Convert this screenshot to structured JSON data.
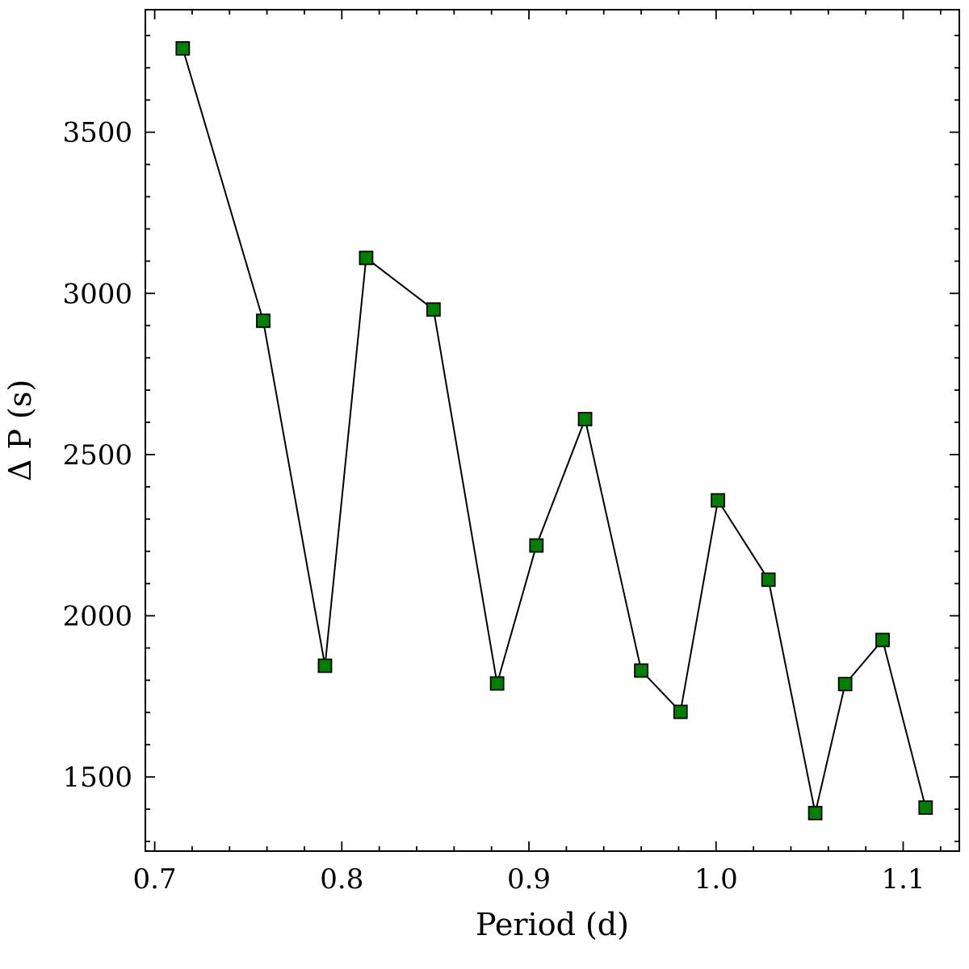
{
  "chart_data": {
    "type": "line",
    "title": "",
    "xlabel": "Period (d)",
    "ylabel": "Δ P (s)",
    "xlim": [
      0.695,
      1.13
    ],
    "ylim": [
      1270,
      3880
    ],
    "xticks": [
      0.7,
      0.8,
      0.9,
      1.0,
      1.1
    ],
    "xtick_labels": [
      "0.7",
      "0.8",
      "0.9",
      "1.0",
      "1.1"
    ],
    "xminor_step": 0.02,
    "yticks": [
      1500,
      2000,
      2500,
      3000,
      3500
    ],
    "ytick_labels": [
      "1500",
      "2000",
      "2500",
      "3000",
      "3500"
    ],
    "yminor_step": 100,
    "grid": false,
    "marker": "square",
    "marker_color": "#008000",
    "line_color": "#000000",
    "x": [
      0.715,
      0.758,
      0.791,
      0.813,
      0.849,
      0.883,
      0.904,
      0.93,
      0.96,
      0.981,
      1.001,
      1.028,
      1.053,
      1.069,
      1.089,
      1.112
    ],
    "y": [
      3760,
      2915,
      1845,
      3110,
      2950,
      1790,
      2218,
      2610,
      1830,
      1702,
      2358,
      2112,
      1388,
      1788,
      1925,
      1405
    ]
  }
}
